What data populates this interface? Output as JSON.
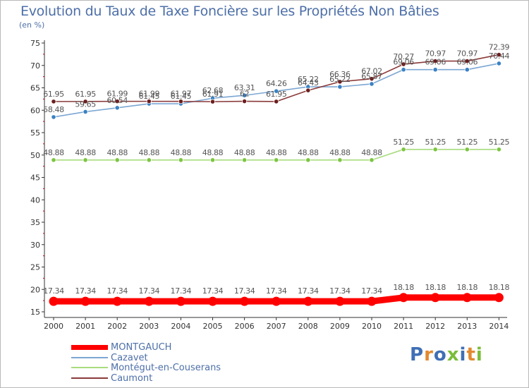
{
  "title": "Evolution du Taux de Taxe Foncière sur les Propriétés Non Bâties",
  "unit_label": "(en %)",
  "brand": {
    "text": "Proxiti",
    "colors": [
      "#3f6fb5",
      "#e2892f",
      "#3f6fb5",
      "#7abd3a",
      "#3f6fb5",
      "#e2892f",
      "#7abd3a"
    ]
  },
  "chart_data": {
    "type": "line",
    "title": "Evolution du Taux de Taxe Foncière sur les Propriétés Non Bâties",
    "ylabel": "(en %)",
    "xlabel": "",
    "ylim": [
      15,
      75
    ],
    "yticks": [
      15,
      20,
      25,
      30,
      35,
      40,
      45,
      50,
      55,
      60,
      65,
      70,
      75
    ],
    "grid": false,
    "legend_position": "bottom-left",
    "x": [
      "2000",
      "2001",
      "2002",
      "2003",
      "2004",
      "2005",
      "2006",
      "2007",
      "2008",
      "2009",
      "2010",
      "2011",
      "2012",
      "2013",
      "2014"
    ],
    "series": [
      {
        "name": "MONTGAUCH",
        "color": "#ff0000",
        "values": [
          17.34,
          17.34,
          17.34,
          17.34,
          17.34,
          17.34,
          17.34,
          17.34,
          17.34,
          17.34,
          17.34,
          18.18,
          18.18,
          18.18,
          18.18
        ],
        "labels": [
          "17.34",
          "17.34",
          "17.34",
          "17.34",
          "17.34",
          "17.34",
          "17.34",
          "17.34",
          "17.34",
          "17.34",
          "17.34",
          "18.18",
          "18.18",
          "18.18",
          "18.18"
        ]
      },
      {
        "name": "Cazavet",
        "color": "#7ca7d3",
        "values": [
          58.48,
          59.65,
          60.54,
          61.45,
          61.45,
          62.68,
          63.31,
          64.26,
          65.22,
          65.22,
          65.87,
          69.06,
          69.06,
          69.06,
          70.44
        ],
        "labels": [
          "58.48",
          "59.65",
          "60.54",
          "61.45",
          "61.45",
          "62.68",
          "63.31",
          "64.26",
          "65.22",
          "65.22",
          "65.87",
          "69.06",
          "69.06",
          "69.06",
          "70.44"
        ]
      },
      {
        "name": "Montégut-en-Couserans",
        "color": "#a9dc7e",
        "values": [
          48.88,
          48.88,
          48.88,
          48.88,
          48.88,
          48.88,
          48.88,
          48.88,
          48.88,
          48.88,
          48.88,
          51.25,
          51.25,
          51.25,
          51.25
        ],
        "labels": [
          "48.88",
          "48.88",
          "48.88",
          "48.88",
          "48.88",
          "48.88",
          "48.88",
          "48.88",
          "48.88",
          "48.88",
          "48.88",
          "51.25",
          "51.25",
          "51.25",
          "51.25"
        ]
      },
      {
        "name": "Caumont",
        "color": "#8b3a3a",
        "values": [
          61.95,
          61.95,
          61.99,
          61.99,
          61.97,
          61.91,
          62.0,
          61.95,
          64.43,
          66.36,
          67.02,
          70.27,
          70.97,
          70.97,
          72.39
        ],
        "labels": [
          "61.95",
          "61.95",
          "61.99",
          "61.99",
          "61.97",
          "61.91",
          "62",
          "61.95",
          "64.43",
          "66.36",
          "67.02",
          "70.27",
          "70.97",
          "70.97",
          "72.39"
        ]
      }
    ]
  }
}
